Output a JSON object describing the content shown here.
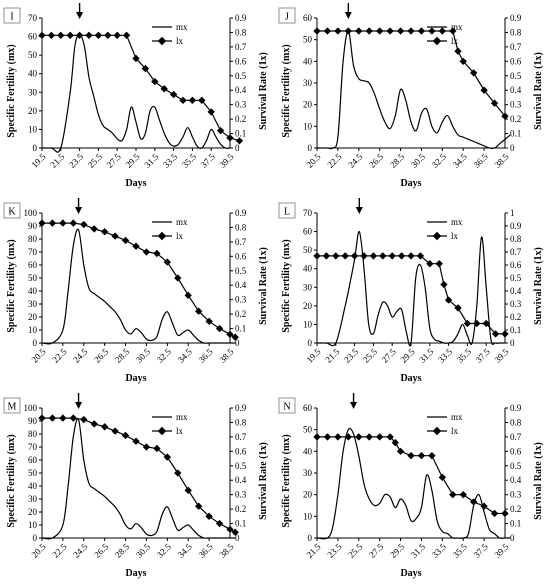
{
  "chart_data": [
    {
      "type": "line",
      "panel": "I",
      "xlabel": "Days",
      "ylabel": "Specific Fertility (mx)",
      "y2label": "Survival Rate (1x)",
      "x_ticks": [
        "19.5",
        "21.5",
        "23.5",
        "25.5",
        "27.5",
        "29.5",
        "31.5",
        "33.5",
        "35.5",
        "37.5",
        "39.5"
      ],
      "x_range": [
        19.5,
        40.5
      ],
      "ylim": [
        0,
        70
      ],
      "y_ticks": [
        0,
        10,
        20,
        30,
        40,
        50,
        60,
        70
      ],
      "y2lim": [
        0,
        0.9
      ],
      "y2_ticks": [
        "0",
        "0.1",
        "0.2",
        "0.3",
        "0.4",
        "0.5",
        "0.6",
        "0.7",
        "0.8",
        "0.9"
      ],
      "arrow_x": 23.5,
      "legend": {
        "mx": "mx",
        "lx": "lx"
      },
      "series": [
        {
          "name": "mx",
          "axis": "left",
          "marker": "none",
          "x": [
            19.5,
            20.5,
            21.5,
            22.5,
            23.0,
            23.5,
            24.0,
            24.5,
            25.0,
            25.5,
            26.0,
            26.5,
            27.0,
            27.5,
            28.0,
            28.5,
            29.0,
            29.5,
            30.0,
            30.5,
            31.0,
            31.5,
            32.0,
            32.5,
            33.0,
            33.5,
            34.0,
            34.5,
            35.0,
            35.5,
            36.0,
            36.5,
            37.0,
            37.5,
            38.0,
            38.5,
            39.0,
            39.5
          ],
          "y": [
            0,
            0,
            0,
            30,
            55,
            61,
            55,
            38,
            28,
            18,
            12,
            10,
            8,
            5,
            4,
            10,
            22,
            14,
            5,
            8,
            20,
            22,
            15,
            8,
            3,
            1,
            2,
            6,
            11,
            6,
            1,
            0,
            4,
            10,
            6,
            2,
            0,
            0
          ]
        },
        {
          "name": "lx",
          "axis": "right",
          "marker": "diamond",
          "x": [
            19.5,
            20.5,
            21.5,
            22.5,
            23.5,
            24.5,
            25.5,
            26.5,
            27.5,
            28.5,
            29.5,
            30.5,
            31.5,
            32.5,
            33.5,
            34.5,
            35.5,
            36.5,
            37.5,
            38.5,
            39.5,
            40.5
          ],
          "y": [
            0.78,
            0.78,
            0.78,
            0.78,
            0.78,
            0.78,
            0.78,
            0.78,
            0.78,
            0.78,
            0.62,
            0.55,
            0.46,
            0.41,
            0.37,
            0.33,
            0.33,
            0.33,
            0.25,
            0.12,
            0.07,
            0.05
          ]
        }
      ]
    },
    {
      "type": "line",
      "panel": "J",
      "xlabel": "Days",
      "ylabel": "Specific Fertility (mx)",
      "y2label": "Survival Rate (1x)",
      "x_ticks": [
        "20.5",
        "22.5",
        "24.5",
        "26.5",
        "28.5",
        "30.5",
        "32.5",
        "34.5",
        "36.5",
        "38.5"
      ],
      "x_range": [
        20.5,
        39.0
      ],
      "ylim": [
        0,
        60
      ],
      "y_ticks": [
        0,
        10,
        20,
        30,
        40,
        50,
        60
      ],
      "y2lim": [
        0,
        0.9
      ],
      "y2_ticks": [
        "0",
        "0.1",
        "0.2",
        "0.3",
        "0.4",
        "0.5",
        "0.6",
        "0.7",
        "0.8",
        "0.9"
      ],
      "arrow_x": 23.5,
      "legend": {
        "mx": "mx",
        "lx": "lx"
      },
      "series": [
        {
          "name": "mx",
          "axis": "left",
          "marker": "none",
          "x": [
            20.5,
            21.5,
            22.0,
            22.5,
            23.0,
            23.5,
            24.0,
            24.5,
            25.0,
            25.5,
            26.0,
            26.5,
            27.0,
            27.5,
            28.0,
            28.5,
            29.0,
            29.5,
            30.0,
            30.5,
            31.0,
            31.5,
            32.0,
            32.5,
            33.0,
            33.5,
            34.0,
            34.5,
            35.0,
            35.5,
            36.0,
            36.5,
            37.0,
            37.5,
            38.0,
            38.5,
            39.0
          ],
          "y": [
            0,
            0,
            0,
            5,
            40,
            54,
            38,
            32,
            31,
            30,
            25,
            18,
            12,
            9,
            15,
            27,
            22,
            12,
            8,
            16,
            18,
            10,
            7,
            12,
            15,
            10,
            6,
            5,
            4,
            3,
            2,
            1,
            0,
            0,
            2,
            4,
            6
          ]
        },
        {
          "name": "lx",
          "axis": "right",
          "marker": "diamond",
          "x": [
            20.5,
            21.5,
            22.5,
            23.5,
            24.5,
            25.5,
            26.5,
            27.5,
            28.5,
            29.5,
            30.5,
            31.5,
            32.5,
            33.5,
            34.0,
            34.5,
            35.5,
            36.5,
            37.5,
            38.5
          ],
          "y": [
            0.81,
            0.81,
            0.81,
            0.81,
            0.81,
            0.81,
            0.81,
            0.81,
            0.81,
            0.81,
            0.81,
            0.81,
            0.81,
            0.81,
            0.67,
            0.6,
            0.52,
            0.4,
            0.31,
            0.22
          ]
        }
      ]
    },
    {
      "type": "line",
      "panel": "K",
      "xlabel": "Days",
      "ylabel": "Specific Fertility (mx)",
      "y2label": "Survival Rate (1x)",
      "x_ticks": [
        "20.5",
        "22.5",
        "24.5",
        "26.5",
        "28.5",
        "30.5",
        "32.5",
        "34.5",
        "36.5",
        "38.5"
      ],
      "x_range": [
        20.5,
        39.0
      ],
      "ylim": [
        0,
        100
      ],
      "y_ticks": [
        0,
        10,
        20,
        30,
        40,
        50,
        60,
        70,
        80,
        90,
        100
      ],
      "y2lim": [
        0,
        0.9
      ],
      "y2_ticks": [
        "0",
        "0.1",
        "0.2",
        "0.3",
        "0.4",
        "0.5",
        "0.6",
        "0.7",
        "0.8",
        "0.9"
      ],
      "arrow_x": 24.0,
      "legend": {
        "mx": "mx",
        "lx": "lx"
      },
      "series": [
        {
          "name": "mx",
          "axis": "left",
          "marker": "none",
          "x": [
            20.5,
            21.5,
            22.5,
            23.0,
            23.5,
            24.0,
            24.5,
            25.0,
            25.5,
            26.0,
            26.5,
            27.0,
            27.5,
            28.0,
            28.5,
            29.0,
            29.5,
            30.0,
            30.5,
            31.0,
            31.5,
            32.0,
            32.5,
            33.0,
            33.5,
            34.0,
            34.5,
            35.0,
            35.5,
            36.0,
            36.5,
            37.0,
            37.5,
            38.0,
            38.5,
            39.0
          ],
          "y": [
            0,
            0,
            10,
            40,
            75,
            87,
            60,
            42,
            38,
            35,
            32,
            28,
            24,
            18,
            10,
            7,
            11,
            8,
            3,
            2,
            5,
            18,
            24,
            15,
            6,
            8,
            10,
            6,
            2,
            0,
            0,
            0,
            0,
            0,
            0,
            0
          ]
        },
        {
          "name": "lx",
          "axis": "right",
          "marker": "diamond",
          "x": [
            20.5,
            21.5,
            22.5,
            23.5,
            24.5,
            25.5,
            26.5,
            27.5,
            28.5,
            29.5,
            30.5,
            31.5,
            32.5,
            33.5,
            34.5,
            35.5,
            36.5,
            37.5,
            38.5,
            39.0
          ],
          "y": [
            0.83,
            0.83,
            0.83,
            0.83,
            0.82,
            0.79,
            0.77,
            0.74,
            0.71,
            0.67,
            0.63,
            0.62,
            0.56,
            0.45,
            0.33,
            0.22,
            0.15,
            0.1,
            0.06,
            0.04
          ]
        }
      ]
    },
    {
      "type": "line",
      "panel": "L",
      "xlabel": "Days",
      "ylabel": "Specific Fertility (mx)",
      "y2label": "Survival Rate (1x)",
      "x_ticks": [
        "19.5",
        "21.5",
        "23.5",
        "25.5",
        "27.5",
        "29.5",
        "31.5",
        "33.5",
        "35.5",
        "37.5",
        "39.5"
      ],
      "x_range": [
        19.5,
        40.0
      ],
      "ylim": [
        0,
        70
      ],
      "y_ticks": [
        0,
        10,
        20,
        30,
        40,
        50,
        60,
        70
      ],
      "y2lim": [
        0,
        1
      ],
      "y2_ticks": [
        "0",
        "0.1",
        "0.2",
        "0.3",
        "0.4",
        "0.5",
        "0.6",
        "0.7",
        "0.8",
        "0.9",
        "1"
      ],
      "arrow_x": 24.0,
      "legend": {
        "mx": "mx",
        "lx": "lx"
      },
      "series": [
        {
          "name": "mx",
          "axis": "left",
          "marker": "none",
          "x": [
            19.5,
            20.5,
            21.5,
            22.5,
            23.0,
            23.5,
            24.0,
            24.5,
            25.0,
            25.5,
            26.0,
            26.5,
            27.0,
            27.5,
            28.0,
            28.5,
            29.0,
            29.5,
            30.0,
            30.5,
            31.0,
            31.5,
            32.0,
            32.5,
            33.0,
            33.5,
            34.0,
            34.5,
            35.0,
            35.5,
            36.0,
            36.5,
            37.0,
            37.5,
            38.0,
            38.5,
            39.0,
            39.5
          ],
          "y": [
            0,
            0,
            0,
            20,
            32,
            45,
            60,
            40,
            10,
            5,
            15,
            22,
            20,
            14,
            17,
            18,
            6,
            0,
            35,
            42,
            30,
            8,
            2,
            1,
            0,
            0,
            1,
            5,
            10,
            4,
            0,
            20,
            57,
            30,
            2,
            0,
            0,
            0
          ]
        },
        {
          "name": "lx",
          "axis": "right",
          "marker": "diamond",
          "x": [
            19.5,
            20.5,
            21.5,
            22.5,
            23.5,
            24.5,
            25.5,
            26.5,
            27.5,
            28.5,
            29.5,
            30.5,
            31.5,
            32.5,
            33.0,
            33.5,
            34.5,
            35.5,
            36.5,
            37.5,
            38.5,
            39.5
          ],
          "y": [
            0.67,
            0.67,
            0.67,
            0.67,
            0.67,
            0.67,
            0.67,
            0.67,
            0.67,
            0.67,
            0.67,
            0.67,
            0.61,
            0.61,
            0.45,
            0.33,
            0.27,
            0.15,
            0.15,
            0.15,
            0.07,
            0.07
          ]
        }
      ]
    },
    {
      "type": "line",
      "panel": "M",
      "xlabel": "Days",
      "ylabel": "Specific Fertility (mx)",
      "y2label": "Survival Rate (1x)",
      "x_ticks": [
        "20.5",
        "22.5",
        "24.5",
        "26.5",
        "28.5",
        "30.5",
        "32.5",
        "34.5",
        "36.5",
        "38.5"
      ],
      "x_range": [
        20.5,
        39.0
      ],
      "ylim": [
        0,
        100
      ],
      "y_ticks": [
        0,
        10,
        20,
        30,
        40,
        50,
        60,
        70,
        80,
        90,
        100
      ],
      "y2lim": [
        0,
        0.9
      ],
      "y2_ticks": [
        "0",
        "0.1",
        "0.2",
        "0.3",
        "0.4",
        "0.5",
        "0.6",
        "0.7",
        "0.8",
        "0.9"
      ],
      "arrow_x": 24.0,
      "legend": {
        "mx": "mx",
        "lx": "lx"
      },
      "series": [
        {
          "name": "mx",
          "axis": "left",
          "marker": "none",
          "x": [
            20.5,
            21.5,
            22.5,
            23.0,
            23.5,
            24.0,
            24.5,
            25.0,
            25.5,
            26.0,
            26.5,
            27.0,
            27.5,
            28.0,
            28.5,
            29.0,
            29.5,
            30.0,
            30.5,
            31.0,
            31.5,
            32.0,
            32.5,
            33.0,
            33.5,
            34.0,
            34.5,
            35.0,
            35.5,
            36.0,
            36.5,
            37.0,
            37.5,
            38.0,
            38.5,
            39.0
          ],
          "y": [
            0,
            0,
            10,
            40,
            78,
            91,
            60,
            42,
            38,
            35,
            32,
            28,
            24,
            18,
            10,
            7,
            11,
            8,
            3,
            2,
            5,
            18,
            24,
            15,
            6,
            8,
            10,
            6,
            2,
            0,
            0,
            0,
            0,
            0,
            0,
            0
          ]
        },
        {
          "name": "lx",
          "axis": "right",
          "marker": "diamond",
          "x": [
            20.5,
            21.5,
            22.5,
            23.5,
            24.5,
            25.5,
            26.5,
            27.5,
            28.5,
            29.5,
            30.5,
            31.5,
            32.5,
            33.5,
            34.5,
            35.5,
            36.5,
            37.5,
            38.5,
            39.0
          ],
          "y": [
            0.83,
            0.83,
            0.83,
            0.83,
            0.82,
            0.79,
            0.77,
            0.74,
            0.71,
            0.67,
            0.63,
            0.62,
            0.56,
            0.45,
            0.33,
            0.22,
            0.15,
            0.1,
            0.06,
            0.04
          ]
        }
      ]
    },
    {
      "type": "line",
      "panel": "N",
      "xlabel": "Days",
      "ylabel": "Specific Fertility (mx)",
      "y2label": "Survival Rate (1x)",
      "x_ticks": [
        "21.5",
        "23.5",
        "25.5",
        "27.5",
        "29.5",
        "31.5",
        "33.5",
        "35.5",
        "37.5",
        "39.5"
      ],
      "x_range": [
        21.5,
        40.0
      ],
      "ylim": [
        0,
        60
      ],
      "y_ticks": [
        0,
        10,
        20,
        30,
        40,
        50,
        60
      ],
      "y2lim": [
        0,
        0.9
      ],
      "y2_ticks": [
        "0",
        "0.1",
        "0.2",
        "0.3",
        "0.4",
        "0.5",
        "0.6",
        "0.7",
        "0.8",
        "0.9"
      ],
      "arrow_x": 25.0,
      "legend": {
        "mx": "mx",
        "lx": "lx"
      },
      "series": [
        {
          "name": "mx",
          "axis": "left",
          "marker": "none",
          "x": [
            21.5,
            22.5,
            23.0,
            23.5,
            24.0,
            24.5,
            25.0,
            25.5,
            26.0,
            26.5,
            27.0,
            27.5,
            28.0,
            28.5,
            29.0,
            29.5,
            30.0,
            30.5,
            31.0,
            31.5,
            32.0,
            32.5,
            33.0,
            33.5,
            34.0,
            34.5,
            35.0,
            35.5,
            36.0,
            36.5,
            37.0,
            37.5,
            38.0,
            38.5,
            39.0,
            39.5,
            40.0
          ],
          "y": [
            0,
            0,
            5,
            20,
            40,
            50,
            48,
            38,
            25,
            18,
            15,
            16,
            20,
            19,
            14,
            18,
            15,
            8,
            9,
            14,
            29,
            22,
            8,
            3,
            2,
            0,
            0,
            0,
            2,
            15,
            20,
            12,
            4,
            2,
            0,
            0,
            0
          ]
        },
        {
          "name": "lx",
          "axis": "right",
          "marker": "diamond",
          "x": [
            21.5,
            22.5,
            23.5,
            24.5,
            25.5,
            26.5,
            27.5,
            28.5,
            29.0,
            29.5,
            30.5,
            31.5,
            32.5,
            33.5,
            34.5,
            35.5,
            36.5,
            37.5,
            38.5,
            39.5
          ],
          "y": [
            0.7,
            0.7,
            0.7,
            0.7,
            0.7,
            0.7,
            0.7,
            0.7,
            0.66,
            0.6,
            0.57,
            0.57,
            0.57,
            0.42,
            0.3,
            0.3,
            0.25,
            0.22,
            0.17,
            0.17
          ]
        }
      ]
    }
  ]
}
